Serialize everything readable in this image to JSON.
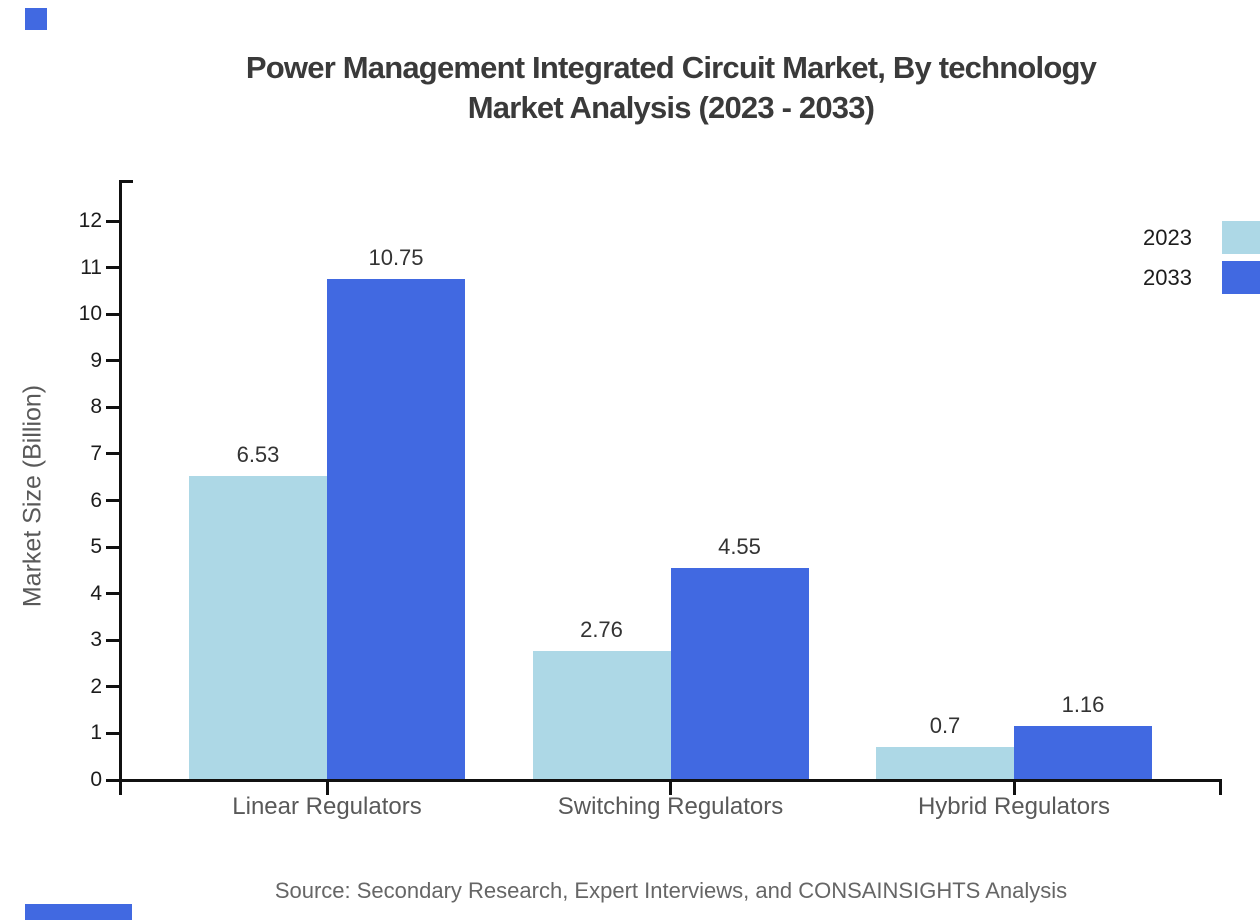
{
  "title": {
    "line1": "Power Management Integrated Circuit Market, By technology",
    "line2": "Market Analysis (2023 - 2033)"
  },
  "source": "Source: Secondary Research, Expert Interviews, and CONSAINSIGHTS Analysis",
  "legend": [
    {
      "label": "2023",
      "color": "#ADD8E6"
    },
    {
      "label": "2033",
      "color": "#4169E1"
    }
  ],
  "colors": {
    "series_2023": "#ADD8E6",
    "series_2033": "#4169E1",
    "axis": "#111111",
    "title_text": "#3a3a3a",
    "muted_text": "#595959",
    "watermark": "#4169E1"
  },
  "chart_data": {
    "type": "bar",
    "categories": [
      "Linear Regulators",
      "Switching Regulators",
      "Hybrid Regulators"
    ],
    "series": [
      {
        "name": "2023",
        "color": "#ADD8E6",
        "values": [
          6.53,
          2.76,
          0.7
        ]
      },
      {
        "name": "2033",
        "color": "#4169E1",
        "values": [
          10.75,
          4.55,
          1.16
        ]
      }
    ],
    "value_labels": [
      [
        "6.53",
        "2.76",
        "0.7"
      ],
      [
        "10.75",
        "4.55",
        "1.16"
      ]
    ],
    "title": "Power Management Integrated Circuit Market, By technology Market Analysis (2023 - 2033)",
    "xlabel": "",
    "ylabel": "Market Size (Billion)",
    "ylim": [
      0,
      12
    ],
    "ytick_step": 1,
    "grid": false,
    "legend_position": "top-right"
  }
}
